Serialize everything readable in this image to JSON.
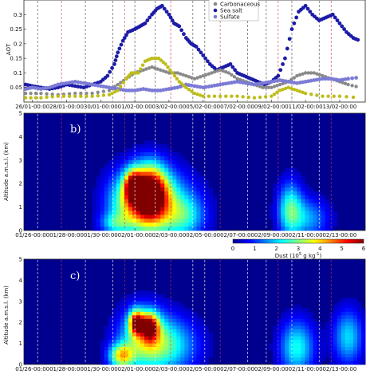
{
  "chart_data": [
    {
      "type": "scatter",
      "panel": "a",
      "ylabel": "AOT",
      "ylim": [
        0,
        0.35
      ],
      "yticks": [
        "0.05",
        "0.1",
        "0.15",
        "0.2",
        "0.25",
        "0.3"
      ],
      "xticks": [
        "26/01-00:00",
        "28/01-00:00",
        "30/01-00:00",
        "01/02-00:00",
        "03/02-00:00",
        "05/02-00:00",
        "07/02-00:00",
        "09/02-00:00",
        "11/02-00:00",
        "13/02-00:00"
      ],
      "xlim_days": [
        25.5,
        45.5
      ],
      "legend": [
        "Carbonaceous",
        "Sea salt",
        "Sulfate"
      ],
      "colors": {
        "sea_salt": "#1c1ca8",
        "carbonaceous": "#8a8a8a",
        "sulfate": "#7b7bd6",
        "dust": "#bdbd1a"
      },
      "series": [
        {
          "name": "Sea salt",
          "points": [
            [
              25.6,
              0.06
            ],
            [
              26.0,
              0.055
            ],
            [
              26.5,
              0.05
            ],
            [
              27.0,
              0.045
            ],
            [
              27.5,
              0.05
            ],
            [
              28.0,
              0.06
            ],
            [
              28.5,
              0.055
            ],
            [
              29.0,
              0.05
            ],
            [
              29.5,
              0.06
            ],
            [
              30.0,
              0.07
            ],
            [
              30.4,
              0.09
            ],
            [
              30.8,
              0.13
            ],
            [
              31.0,
              0.17
            ],
            [
              31.3,
              0.21
            ],
            [
              31.6,
              0.24
            ],
            [
              32.0,
              0.25
            ],
            [
              32.3,
              0.26
            ],
            [
              32.6,
              0.27
            ],
            [
              33.0,
              0.3
            ],
            [
              33.3,
              0.32
            ],
            [
              33.6,
              0.33
            ],
            [
              34.0,
              0.3
            ],
            [
              34.3,
              0.27
            ],
            [
              34.6,
              0.26
            ],
            [
              35.0,
              0.22
            ],
            [
              35.3,
              0.2
            ],
            [
              35.6,
              0.19
            ],
            [
              36.0,
              0.16
            ],
            [
              36.4,
              0.13
            ],
            [
              36.8,
              0.11
            ],
            [
              37.2,
              0.12
            ],
            [
              37.6,
              0.13
            ],
            [
              38.0,
              0.1
            ],
            [
              38.4,
              0.09
            ],
            [
              38.8,
              0.08
            ],
            [
              39.2,
              0.07
            ],
            [
              39.6,
              0.06
            ],
            [
              40.0,
              0.07
            ],
            [
              40.4,
              0.09
            ],
            [
              40.8,
              0.15
            ],
            [
              41.2,
              0.25
            ],
            [
              41.6,
              0.31
            ],
            [
              42.0,
              0.33
            ],
            [
              42.4,
              0.3
            ],
            [
              42.8,
              0.28
            ],
            [
              43.2,
              0.29
            ],
            [
              43.6,
              0.3
            ],
            [
              44.0,
              0.27
            ],
            [
              44.4,
              0.24
            ],
            [
              44.8,
              0.22
            ],
            [
              45.2,
              0.21
            ]
          ]
        },
        {
          "name": "Carbonaceous",
          "points": [
            [
              25.6,
              0.03
            ],
            [
              26.5,
              0.03
            ],
            [
              27.5,
              0.025
            ],
            [
              28.5,
              0.03
            ],
            [
              29.5,
              0.03
            ],
            [
              30.5,
              0.04
            ],
            [
              31.0,
              0.06
            ],
            [
              31.5,
              0.08
            ],
            [
              32.0,
              0.1
            ],
            [
              32.5,
              0.11
            ],
            [
              33.0,
              0.12
            ],
            [
              33.5,
              0.11
            ],
            [
              34.0,
              0.1
            ],
            [
              34.5,
              0.1
            ],
            [
              35.0,
              0.09
            ],
            [
              35.5,
              0.08
            ],
            [
              36.0,
              0.09
            ],
            [
              36.5,
              0.1
            ],
            [
              37.0,
              0.11
            ],
            [
              37.5,
              0.1
            ],
            [
              38.0,
              0.08
            ],
            [
              38.5,
              0.07
            ],
            [
              39.0,
              0.06
            ],
            [
              39.5,
              0.05
            ],
            [
              40.0,
              0.05
            ],
            [
              40.5,
              0.06
            ],
            [
              41.0,
              0.07
            ],
            [
              41.5,
              0.09
            ],
            [
              42.0,
              0.1
            ],
            [
              42.5,
              0.1
            ],
            [
              43.0,
              0.09
            ],
            [
              43.5,
              0.08
            ],
            [
              44.0,
              0.07
            ],
            [
              44.5,
              0.06
            ],
            [
              45.2,
              0.05
            ]
          ]
        },
        {
          "name": "Sulfate",
          "points": [
            [
              25.6,
              0.045
            ],
            [
              26.0,
              0.05
            ],
            [
              26.5,
              0.045
            ],
            [
              27.0,
              0.05
            ],
            [
              27.5,
              0.06
            ],
            [
              28.0,
              0.065
            ],
            [
              28.5,
              0.07
            ],
            [
              29.0,
              0.065
            ],
            [
              29.5,
              0.06
            ],
            [
              30.0,
              0.055
            ],
            [
              30.5,
              0.05
            ],
            [
              31.0,
              0.045
            ],
            [
              31.5,
              0.04
            ],
            [
              32.0,
              0.04
            ],
            [
              32.5,
              0.045
            ],
            [
              33.0,
              0.04
            ],
            [
              33.5,
              0.04
            ],
            [
              34.0,
              0.045
            ],
            [
              34.5,
              0.05
            ],
            [
              35.0,
              0.06
            ],
            [
              35.5,
              0.055
            ],
            [
              36.0,
              0.05
            ],
            [
              36.5,
              0.055
            ],
            [
              37.0,
              0.06
            ],
            [
              37.5,
              0.065
            ],
            [
              38.0,
              0.07
            ],
            [
              38.5,
              0.065
            ],
            [
              39.0,
              0.06
            ],
            [
              39.5,
              0.065
            ],
            [
              40.0,
              0.07
            ],
            [
              40.5,
              0.075
            ],
            [
              41.0,
              0.07
            ],
            [
              41.5,
              0.065
            ],
            [
              42.0,
              0.07
            ],
            [
              42.5,
              0.075
            ],
            [
              43.0,
              0.08
            ],
            [
              43.5,
              0.08
            ],
            [
              44.0,
              0.075
            ],
            [
              44.5,
              0.08
            ],
            [
              45.2,
              0.085
            ]
          ]
        },
        {
          "name": "Dust",
          "points": [
            [
              25.6,
              0.015
            ],
            [
              26.5,
              0.015
            ],
            [
              27.5,
              0.02
            ],
            [
              28.5,
              0.02
            ],
            [
              29.5,
              0.02
            ],
            [
              30.5,
              0.025
            ],
            [
              31.0,
              0.04
            ],
            [
              31.5,
              0.08
            ],
            [
              31.8,
              0.1
            ],
            [
              32.2,
              0.1
            ],
            [
              32.6,
              0.14
            ],
            [
              33.0,
              0.15
            ],
            [
              33.4,
              0.15
            ],
            [
              33.8,
              0.13
            ],
            [
              34.2,
              0.1
            ],
            [
              34.6,
              0.07
            ],
            [
              35.0,
              0.05
            ],
            [
              35.5,
              0.03
            ],
            [
              36.0,
              0.02
            ],
            [
              37.0,
              0.02
            ],
            [
              38.0,
              0.02
            ],
            [
              39.0,
              0.015
            ],
            [
              40.0,
              0.02
            ],
            [
              40.5,
              0.04
            ],
            [
              41.0,
              0.05
            ],
            [
              41.5,
              0.04
            ],
            [
              42.0,
              0.03
            ],
            [
              43.0,
              0.02
            ],
            [
              44.0,
              0.02
            ],
            [
              45.2,
              0.015
            ]
          ]
        }
      ]
    },
    {
      "type": "heatmap",
      "panel": "b",
      "panel_label": "b)",
      "ylabel": "Altitude a.m.s.l. (km)",
      "ylim": [
        0,
        5
      ],
      "yticks": [
        "0",
        "1",
        "2",
        "3",
        "4",
        "5"
      ],
      "xticks": [
        "01/26-00:00",
        "01/28-00:00",
        "01/30-00:00",
        "02/01-00:00",
        "02/03-00:00",
        "02/05-00:00",
        "02/07-00:00",
        "02/09-00:00",
        "02/11-00:00",
        "02/13-00:00"
      ],
      "colorbar_label": "Dust (10",
      "colorbar_exp": "5",
      "colorbar_unit": " g kg",
      "colorbar_unit_exp": "-1",
      "colorbar_close": ")",
      "colorbar_ticks": [
        "0",
        "1",
        "2",
        "3",
        "4",
        "5",
        "6"
      ],
      "zlim": [
        0,
        6
      ],
      "blobs": [
        {
          "day": 32.9,
          "alt": 1.6,
          "sx": 0.7,
          "sy": 0.8,
          "z": 5.8
        },
        {
          "day": 31.9,
          "alt": 1.9,
          "sx": 0.35,
          "sy": 0.45,
          "z": 4.0
        },
        {
          "day": 31.6,
          "alt": 1.2,
          "sx": 0.9,
          "sy": 0.9,
          "z": 2.5
        },
        {
          "day": 33.6,
          "alt": 1.0,
          "sx": 1.3,
          "sy": 1.0,
          "z": 2.6
        },
        {
          "day": 35.0,
          "alt": 0.6,
          "sx": 0.8,
          "sy": 0.6,
          "z": 1.3
        },
        {
          "day": 41.1,
          "alt": 0.9,
          "sx": 0.5,
          "sy": 0.8,
          "z": 2.4
        },
        {
          "day": 42.2,
          "alt": 0.5,
          "sx": 0.8,
          "sy": 0.6,
          "z": 1.5
        },
        {
          "day": 30.8,
          "alt": 0.3,
          "sx": 0.6,
          "sy": 0.3,
          "z": 1.4
        }
      ]
    },
    {
      "type": "heatmap",
      "panel": "c",
      "panel_label": "c)",
      "ylabel": "Altitude a.m.s.l. (km)",
      "ylim": [
        0,
        5
      ],
      "yticks": [
        "0",
        "1",
        "2",
        "3",
        "4",
        "5"
      ],
      "xticks": [
        "01/26-00:00",
        "01/28-00:00",
        "01/30-00:00",
        "02/01-00:00",
        "02/03-00:00",
        "02/05-00:00",
        "02/07-00:00",
        "02/09-00:00",
        "02/11-00:00",
        "02/13-00:00"
      ],
      "zlim": [
        0,
        6
      ],
      "blobs": [
        {
          "day": 32.1,
          "alt": 2.0,
          "sx": 0.3,
          "sy": 0.4,
          "z": 4.6
        },
        {
          "day": 32.9,
          "alt": 1.8,
          "sx": 0.35,
          "sy": 0.45,
          "z": 4.2
        },
        {
          "day": 32.5,
          "alt": 1.2,
          "sx": 1.0,
          "sy": 1.0,
          "z": 2.6
        },
        {
          "day": 31.2,
          "alt": 0.4,
          "sx": 0.5,
          "sy": 0.4,
          "z": 3.2
        },
        {
          "day": 34.0,
          "alt": 0.9,
          "sx": 1.2,
          "sy": 0.9,
          "z": 2.0
        },
        {
          "day": 41.5,
          "alt": 0.8,
          "sx": 0.7,
          "sy": 0.9,
          "z": 2.2
        },
        {
          "day": 44.5,
          "alt": 1.3,
          "sx": 0.6,
          "sy": 0.9,
          "z": 1.9
        }
      ]
    }
  ]
}
